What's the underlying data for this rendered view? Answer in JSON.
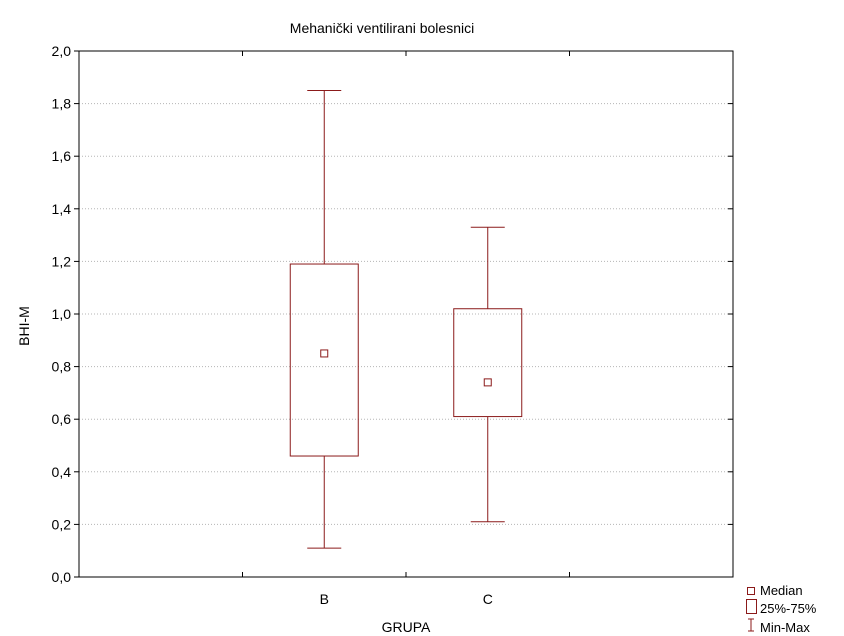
{
  "chart_data": {
    "type": "boxplot",
    "title": "Mehanički ventilirani bolesnici",
    "xlabel": "GRUPA",
    "ylabel": "BHI-M",
    "ylim": [
      0.0,
      2.0
    ],
    "yticks": [
      "0,0",
      "0,2",
      "0,4",
      "0,6",
      "0,8",
      "1,0",
      "1,2",
      "1,4",
      "1,6",
      "1,8",
      "2,0"
    ],
    "ytick_values": [
      0.0,
      0.2,
      0.4,
      0.6,
      0.8,
      1.0,
      1.2,
      1.4,
      1.6,
      1.8,
      2.0
    ],
    "grid": true,
    "categories": [
      "B",
      "C"
    ],
    "boxes": [
      {
        "category": "B",
        "min": 0.11,
        "q1": 0.46,
        "median": 0.85,
        "q3": 1.19,
        "max": 1.85
      },
      {
        "category": "C",
        "min": 0.21,
        "q1": 0.61,
        "median": 0.74,
        "q3": 1.02,
        "max": 1.33
      }
    ],
    "legend": {
      "placement": "bottom-right",
      "items": [
        "Median",
        "25%-75%",
        "Min-Max"
      ]
    },
    "color": "#8b1a1a"
  }
}
